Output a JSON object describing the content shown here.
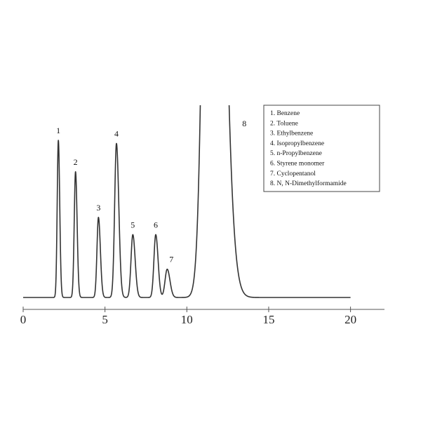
{
  "chart_data": {
    "type": "line",
    "title": "",
    "xlabel": "",
    "ylabel": "",
    "xlim": [
      0,
      22
    ],
    "ylim": [
      0,
      1.25
    ],
    "x_ticks": [
      0,
      5,
      10,
      15,
      20
    ],
    "x_tick_labels": [
      "0",
      "5",
      "10",
      "15",
      "20"
    ],
    "grid": false,
    "legend_placement": "top-right",
    "series_color": "#333333",
    "baseline_end_x": 20,
    "peaks": [
      {
        "label": "1",
        "rt": 2.15,
        "height": 1.0,
        "width": 0.07,
        "tail": 1.2
      },
      {
        "label": "2",
        "rt": 3.2,
        "height": 0.8,
        "width": 0.08,
        "tail": 1.2
      },
      {
        "label": "3",
        "rt": 4.6,
        "height": 0.51,
        "width": 0.09,
        "tail": 1.3
      },
      {
        "label": "4",
        "rt": 5.7,
        "height": 0.98,
        "width": 0.11,
        "tail": 1.3
      },
      {
        "label": "5",
        "rt": 6.7,
        "height": 0.4,
        "width": 0.11,
        "tail": 1.3
      },
      {
        "label": "6",
        "rt": 8.1,
        "height": 0.4,
        "width": 0.11,
        "tail": 1.3
      },
      {
        "label": "7",
        "rt": 8.8,
        "height": 0.18,
        "width": 0.13,
        "tail": 1.3
      },
      {
        "label": "8",
        "rt": 11.5,
        "height": 6.0,
        "width": 0.38,
        "tail": 1.6
      }
    ],
    "legend": [
      "1.  Benzene",
      "2.  Toluene",
      "3.  Ethylbenzene",
      "4.  Isopropylbenzene",
      "5.  n-Propylbenzene",
      "6.  Styrene monomer",
      "7.  Cyclopentanol",
      "8.  N, N-Dimethylformamide"
    ]
  }
}
